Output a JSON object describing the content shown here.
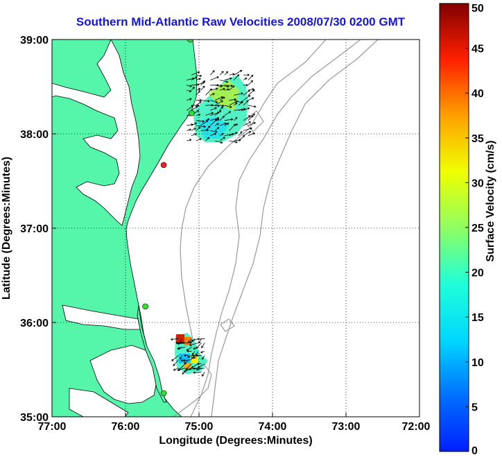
{
  "title": "Southern Mid-Atlantic Raw Velocities 2008/07/30 0200 GMT",
  "axes": {
    "xlabel": "Longitude (Degrees:Minutes)",
    "ylabel": "Latitude (Degrees:Minutes)",
    "x_ticks": [
      "77:00",
      "76:00",
      "75:00",
      "74:00",
      "73:00",
      "72:00"
    ],
    "y_ticks": [
      "39:00",
      "38:00",
      "37:00",
      "36:00",
      "35:00"
    ],
    "xlim": [
      -77,
      -72
    ],
    "ylim": [
      35,
      39
    ],
    "grid": "dotted"
  },
  "colorbar": {
    "label": "Surface Velocity (cm/s)",
    "ticks": [
      "0",
      "5",
      "10",
      "15",
      "20",
      "25",
      "30",
      "35",
      "40",
      "45",
      "50"
    ],
    "range": [
      0,
      50
    ],
    "colormap": "jet"
  },
  "colors": {
    "land": "#55f5aa",
    "title": "#1515e0",
    "station_active": "#33dd33",
    "station_inactive": "#ee2222",
    "bathymetry": "#999999"
  },
  "chart_data": {
    "type": "vector-field-map",
    "stations": [
      {
        "lon": -75.12,
        "lat": 39.0,
        "status": "active"
      },
      {
        "lon": -75.1,
        "lat": 38.22,
        "status": "active"
      },
      {
        "lon": -75.48,
        "lat": 37.67,
        "status": "inactive"
      },
      {
        "lon": -75.73,
        "lat": 36.17,
        "status": "active"
      },
      {
        "lon": -75.48,
        "lat": 35.25,
        "status": "active"
      }
    ],
    "regions": [
      {
        "name": "north",
        "lon_range": [
          -75.2,
          -74.3
        ],
        "lat_range": [
          37.9,
          38.65
        ],
        "speed_range_cm_s": [
          8,
          22
        ]
      },
      {
        "name": "south",
        "lon_range": [
          -75.3,
          -74.9
        ],
        "lat_range": [
          35.45,
          35.85
        ],
        "speed_range_cm_s": [
          5,
          50
        ]
      }
    ]
  }
}
